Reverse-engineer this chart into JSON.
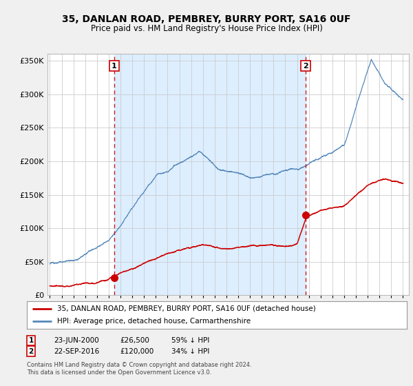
{
  "title": "35, DANLAN ROAD, PEMBREY, BURRY PORT, SA16 0UF",
  "subtitle": "Price paid vs. HM Land Registry's House Price Index (HPI)",
  "footnote": "Contains HM Land Registry data © Crown copyright and database right 2024.\nThis data is licensed under the Open Government Licence v3.0.",
  "legend_red": "35, DANLAN ROAD, PEMBREY, BURRY PORT, SA16 0UF (detached house)",
  "legend_blue": "HPI: Average price, detached house, Carmarthenshire",
  "sale1_label": "1",
  "sale1_date": "23-JUN-2000",
  "sale1_price": "£26,500",
  "sale1_hpi": "59% ↓ HPI",
  "sale1_x": 2000.47,
  "sale1_y": 26500,
  "sale2_label": "2",
  "sale2_date": "22-SEP-2016",
  "sale2_price": "£120,000",
  "sale2_hpi": "34% ↓ HPI",
  "sale2_x": 2016.72,
  "sale2_y": 120000,
  "red_color": "#cc0000",
  "blue_color": "#5588bb",
  "shade_color": "#ddeeff",
  "vline_color": "#cc0000",
  "background_color": "#f0f0f0",
  "plot_bg_color": "#ffffff",
  "ylim": [
    0,
    360000
  ],
  "xlim_start": 1994.8,
  "xlim_end": 2025.5,
  "yticks": [
    0,
    50000,
    100000,
    150000,
    200000,
    250000,
    300000,
    350000
  ],
  "xticks": [
    1995,
    1996,
    1997,
    1998,
    1999,
    2000,
    2001,
    2002,
    2003,
    2004,
    2005,
    2006,
    2007,
    2008,
    2009,
    2010,
    2011,
    2012,
    2013,
    2014,
    2015,
    2016,
    2017,
    2018,
    2019,
    2020,
    2021,
    2022,
    2023,
    2024,
    2025
  ]
}
